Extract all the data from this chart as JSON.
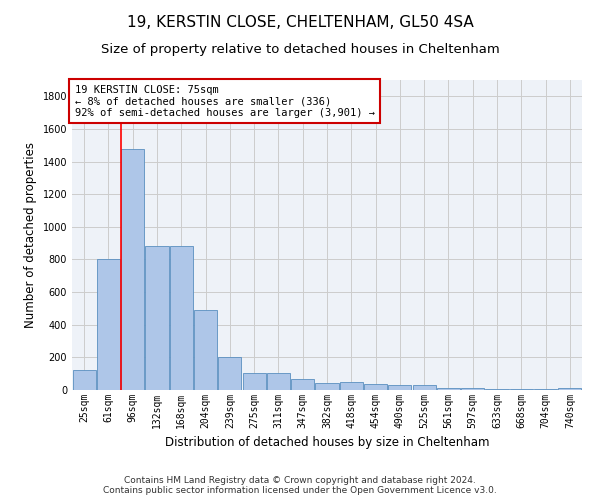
{
  "title": "19, KERSTIN CLOSE, CHELTENHAM, GL50 4SA",
  "subtitle": "Size of property relative to detached houses in Cheltenham",
  "xlabel": "Distribution of detached houses by size in Cheltenham",
  "ylabel": "Number of detached properties",
  "categories": [
    "25sqm",
    "61sqm",
    "96sqm",
    "132sqm",
    "168sqm",
    "204sqm",
    "239sqm",
    "275sqm",
    "311sqm",
    "347sqm",
    "382sqm",
    "418sqm",
    "454sqm",
    "490sqm",
    "525sqm",
    "561sqm",
    "597sqm",
    "633sqm",
    "668sqm",
    "704sqm",
    "740sqm"
  ],
  "values": [
    125,
    800,
    1480,
    880,
    880,
    490,
    205,
    105,
    105,
    65,
    45,
    50,
    35,
    30,
    28,
    15,
    15,
    8,
    8,
    8,
    15
  ],
  "bar_color": "#aec6e8",
  "bar_edge_color": "#5a8fc0",
  "annotation_box_text": "19 KERSTIN CLOSE: 75sqm\n← 8% of detached houses are smaller (336)\n92% of semi-detached houses are larger (3,901) →",
  "annotation_box_color": "#ffffff",
  "annotation_box_edge_color": "#cc0000",
  "red_line_x": 1.5,
  "ylim": [
    0,
    1900
  ],
  "yticks": [
    0,
    200,
    400,
    600,
    800,
    1000,
    1200,
    1400,
    1600,
    1800
  ],
  "grid_color": "#cccccc",
  "background_color": "#eef2f8",
  "footer_line1": "Contains HM Land Registry data © Crown copyright and database right 2024.",
  "footer_line2": "Contains public sector information licensed under the Open Government Licence v3.0.",
  "title_fontsize": 11,
  "subtitle_fontsize": 9.5,
  "xlabel_fontsize": 8.5,
  "ylabel_fontsize": 8.5,
  "tick_fontsize": 7,
  "footer_fontsize": 6.5,
  "annotation_fontsize": 7.5
}
